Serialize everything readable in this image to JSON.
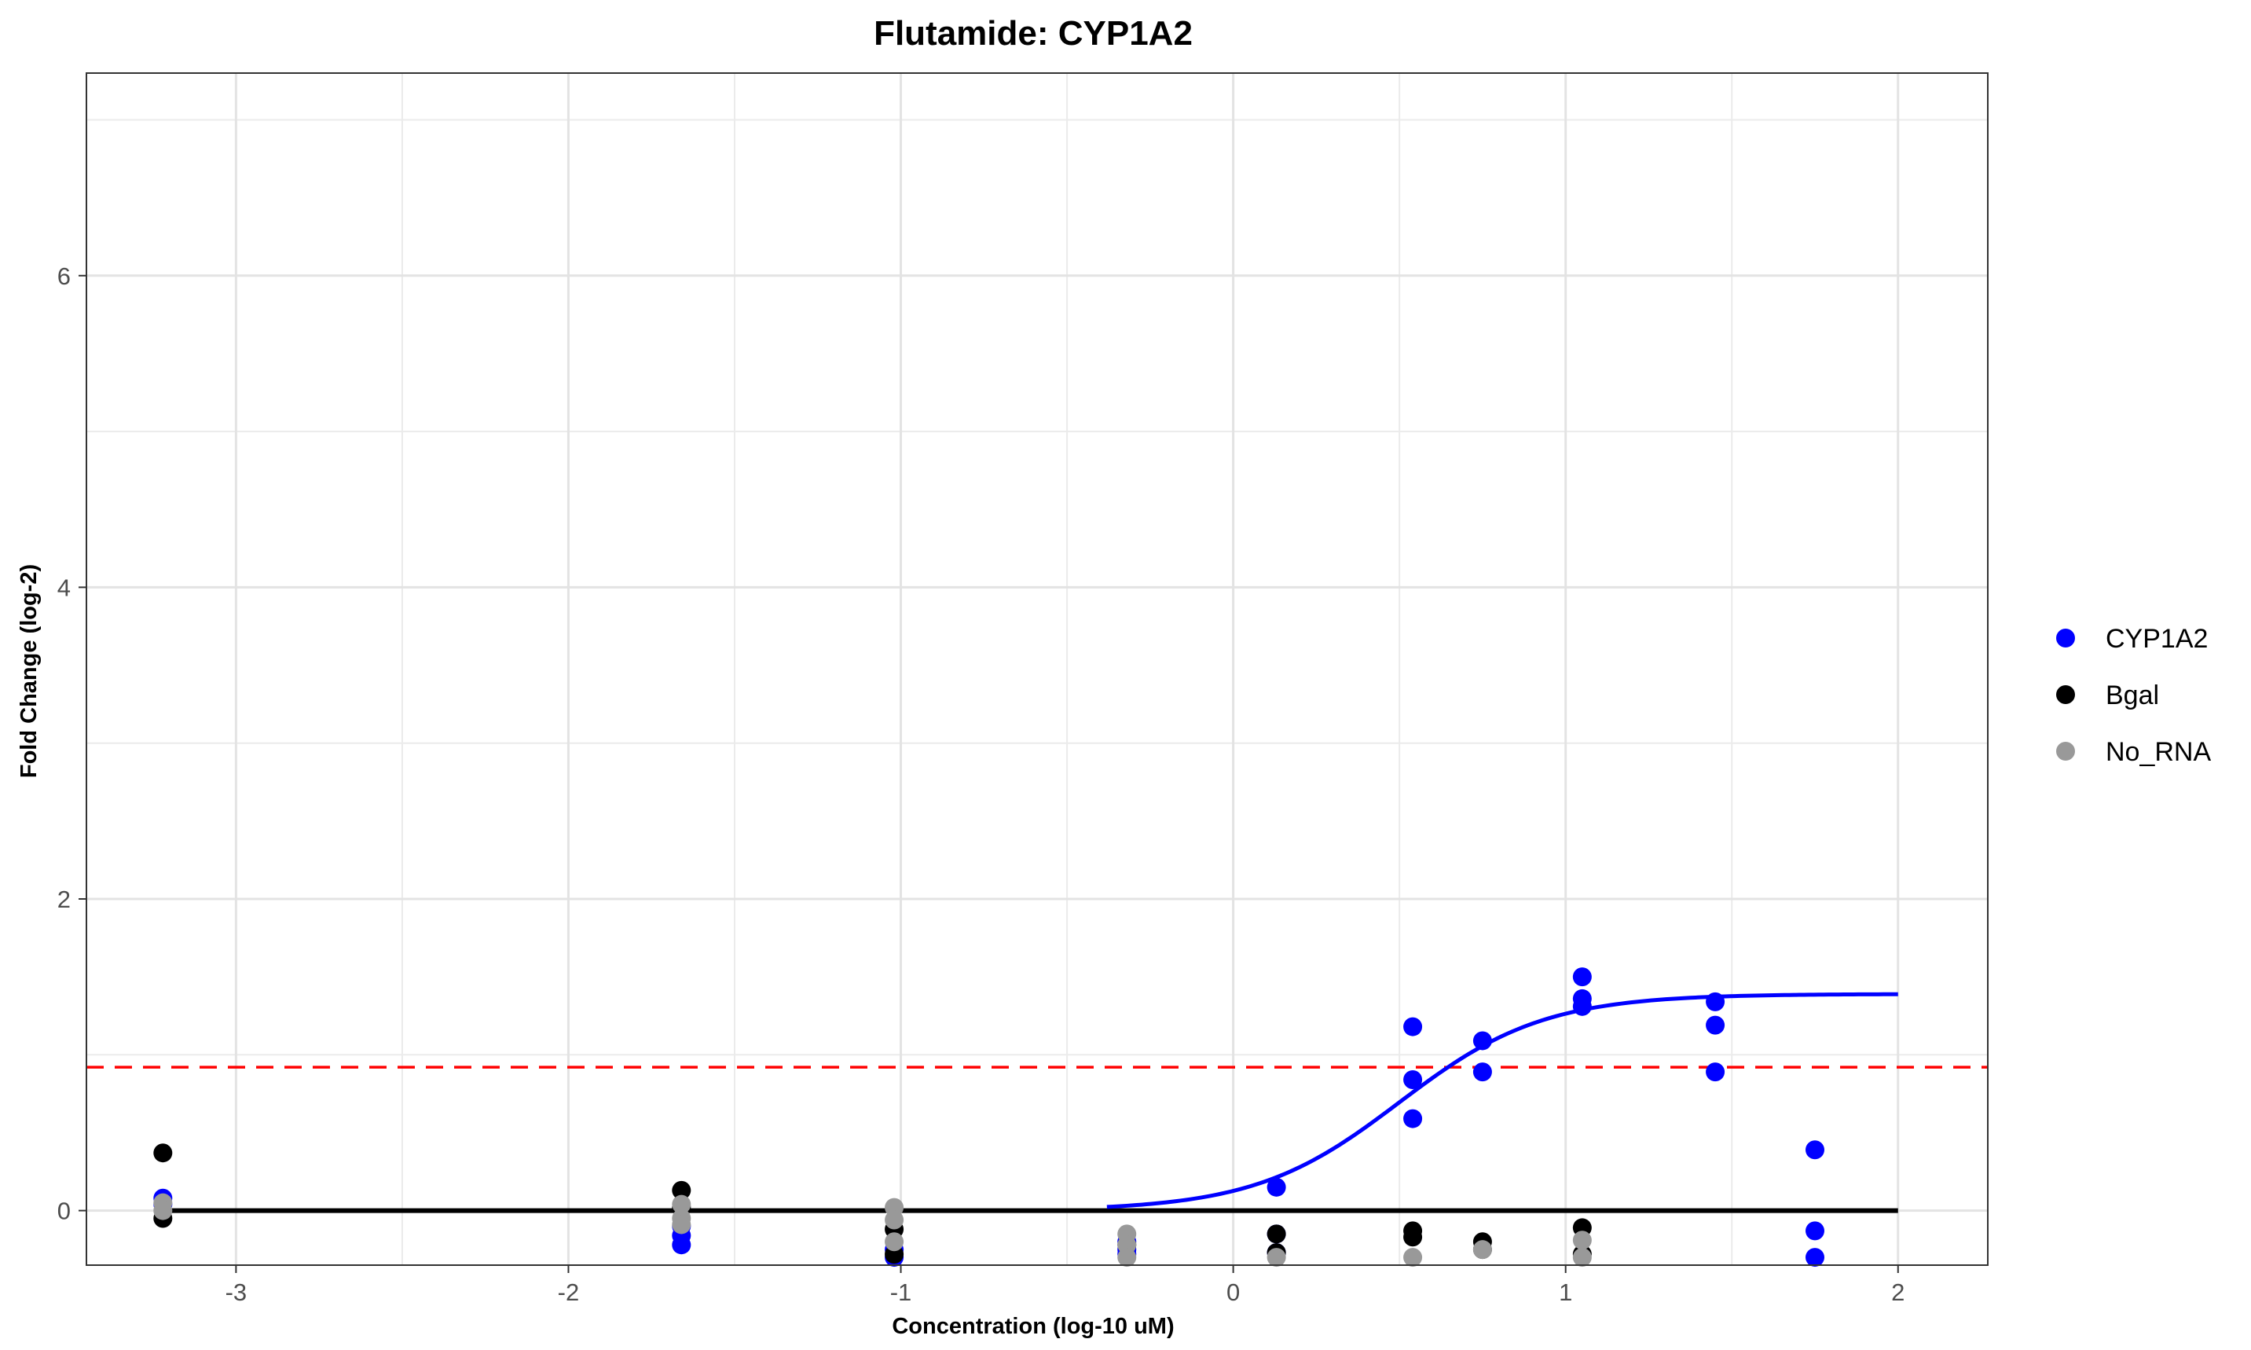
{
  "chart_data": {
    "type": "scatter",
    "title": "Flutamide: CYP1A2",
    "xlabel": "Concentration (log-10 uM)",
    "ylabel": "Fold Change (log-2)",
    "xlim": [
      -3.45,
      2.27
    ],
    "ylim": [
      -0.35,
      7.3
    ],
    "x_ticks": [
      -3,
      -2,
      -1,
      0,
      1,
      2
    ],
    "y_ticks": [
      0,
      2,
      4,
      6
    ],
    "grid": true,
    "legend_position": "right",
    "series": [
      {
        "name": "CYP1A2",
        "color": "#0000ff",
        "points": [
          [
            -3.22,
            0.08
          ],
          [
            -3.22,
            0.04
          ],
          [
            -1.66,
            -0.16
          ],
          [
            -1.66,
            -0.22
          ],
          [
            -1.66,
            -0.1
          ],
          [
            -1.02,
            -0.3
          ],
          [
            -1.02,
            -0.25
          ],
          [
            -0.32,
            -0.2
          ],
          [
            -0.32,
            -0.25
          ],
          [
            -0.32,
            -0.28
          ],
          [
            0.13,
            0.15
          ],
          [
            0.13,
            -0.15
          ],
          [
            0.13,
            -0.27
          ],
          [
            0.54,
            1.18
          ],
          [
            0.54,
            0.84
          ],
          [
            0.54,
            0.59
          ],
          [
            0.75,
            1.09
          ],
          [
            0.75,
            0.89
          ],
          [
            1.05,
            1.5
          ],
          [
            1.05,
            1.36
          ],
          [
            1.05,
            1.31
          ],
          [
            1.45,
            1.34
          ],
          [
            1.45,
            1.19
          ],
          [
            1.45,
            0.89
          ],
          [
            1.75,
            0.39
          ],
          [
            1.75,
            -0.13
          ],
          [
            1.75,
            -0.3
          ]
        ]
      },
      {
        "name": "Bgal",
        "color": "#000000",
        "points": [
          [
            -3.22,
            0.37
          ],
          [
            -3.22,
            -0.05
          ],
          [
            -1.66,
            0.13
          ],
          [
            -1.66,
            0.02
          ],
          [
            -1.02,
            -0.12
          ],
          [
            -1.02,
            -0.28
          ],
          [
            -0.32,
            -0.22
          ],
          [
            0.13,
            -0.15
          ],
          [
            0.13,
            -0.27
          ],
          [
            0.54,
            -0.13
          ],
          [
            0.54,
            -0.17
          ],
          [
            0.75,
            -0.2
          ],
          [
            0.75,
            -0.25
          ],
          [
            1.05,
            -0.11
          ],
          [
            1.05,
            -0.28
          ]
        ]
      },
      {
        "name": "No_RNA",
        "color": "#999999",
        "points": [
          [
            -3.22,
            0.05
          ],
          [
            -3.22,
            0.0
          ],
          [
            -1.66,
            0.04
          ],
          [
            -1.66,
            -0.05
          ],
          [
            -1.66,
            -0.09
          ],
          [
            -1.02,
            0.02
          ],
          [
            -1.02,
            -0.06
          ],
          [
            -1.02,
            -0.2
          ],
          [
            -0.32,
            -0.15
          ],
          [
            -0.32,
            -0.22
          ],
          [
            -0.32,
            -0.3
          ],
          [
            0.13,
            -0.3
          ],
          [
            0.54,
            -0.3
          ],
          [
            0.75,
            -0.25
          ],
          [
            1.05,
            -0.19
          ],
          [
            1.05,
            -0.3
          ]
        ]
      }
    ],
    "fit_curve": {
      "series": "CYP1A2",
      "color": "#0000ff",
      "model": "hill",
      "bottom": 0.0,
      "top": 1.39,
      "ec50_log": 0.5,
      "hill_slope": 2.0,
      "x_range": [
        -0.38,
        2.0
      ]
    },
    "baseline": {
      "y": 0,
      "x_range": [
        -3.22,
        2.0
      ],
      "color": "#000000"
    },
    "threshold": {
      "y": 0.92,
      "color": "#ff0000",
      "style": "dashed"
    }
  }
}
